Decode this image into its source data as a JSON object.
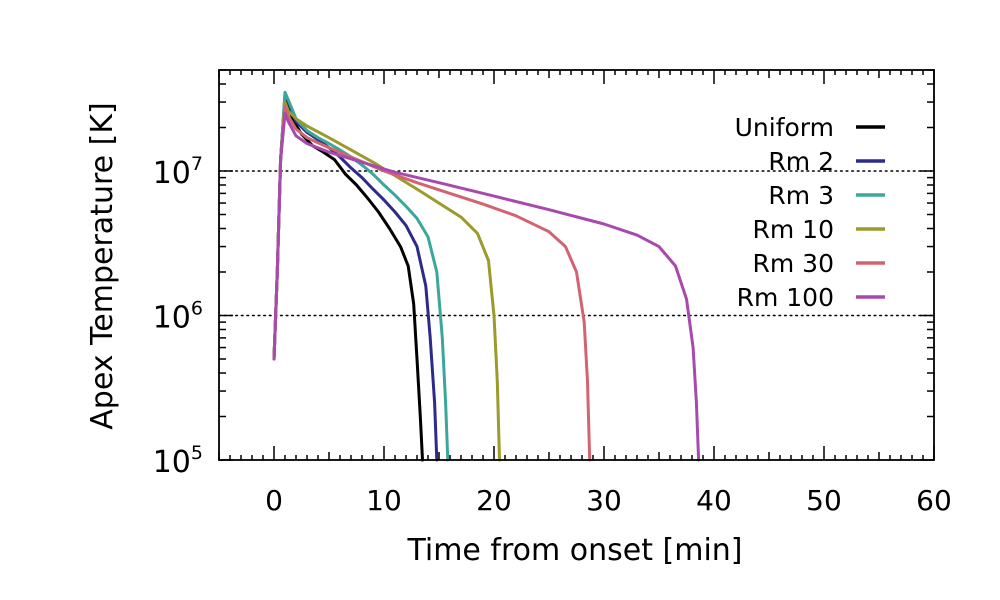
{
  "chart_data": {
    "type": "line",
    "title": "",
    "xlabel": "Time from onset [min]",
    "ylabel": "Apex Temperature [K]",
    "xlim": [
      -5,
      60
    ],
    "ylim": [
      100000,
      50000000
    ],
    "yscale": "log",
    "xticks": [
      0,
      10,
      20,
      30,
      40,
      50,
      60
    ],
    "yticks": [
      {
        "value": 100000,
        "base": "10",
        "exp": "5"
      },
      {
        "value": 1000000,
        "base": "10",
        "exp": "6"
      },
      {
        "value": 10000000,
        "base": "10",
        "exp": "7"
      }
    ],
    "reference_lines": [
      1000000,
      10000000
    ],
    "legend_position": "top-right",
    "series": [
      {
        "name": "Uniform",
        "color": "#000000",
        "points": [
          [
            0,
            500000
          ],
          [
            0.3,
            2000000
          ],
          [
            0.6,
            12000000
          ],
          [
            1.0,
            32000000
          ],
          [
            1.3,
            28000000
          ],
          [
            1.8,
            22000000
          ],
          [
            2.5,
            18000000
          ],
          [
            3.5,
            15000000
          ],
          [
            4.5,
            13500000
          ],
          [
            5.5,
            12000000
          ],
          [
            6.5,
            9500000
          ],
          [
            7.5,
            8000000
          ],
          [
            8.5,
            6500000
          ],
          [
            9.5,
            5200000
          ],
          [
            10.5,
            4000000
          ],
          [
            11.5,
            3000000
          ],
          [
            12.2,
            2200000
          ],
          [
            12.7,
            1200000
          ],
          [
            13.0,
            500000
          ],
          [
            13.3,
            200000
          ],
          [
            13.5,
            100000
          ]
        ]
      },
      {
        "name": "Rm 2",
        "color": "#2e2a8c",
        "points": [
          [
            0,
            500000
          ],
          [
            0.3,
            2000000
          ],
          [
            0.6,
            12000000
          ],
          [
            1.0,
            34000000
          ],
          [
            1.3,
            30000000
          ],
          [
            2.0,
            22000000
          ],
          [
            3.0,
            18500000
          ],
          [
            4.0,
            16500000
          ],
          [
            5.0,
            14500000
          ],
          [
            6.0,
            12500000
          ],
          [
            7.0,
            10500000
          ],
          [
            8.0,
            9000000
          ],
          [
            9.0,
            7500000
          ],
          [
            10.0,
            6300000
          ],
          [
            11.0,
            5200000
          ],
          [
            12.0,
            4200000
          ],
          [
            13.0,
            3000000
          ],
          [
            13.8,
            1600000
          ],
          [
            14.2,
            700000
          ],
          [
            14.6,
            250000
          ],
          [
            14.8,
            100000
          ]
        ]
      },
      {
        "name": "Rm 3",
        "color": "#3aa79a",
        "points": [
          [
            0,
            500000
          ],
          [
            0.3,
            2000000
          ],
          [
            0.6,
            12000000
          ],
          [
            1.0,
            35000000
          ],
          [
            1.3,
            31000000
          ],
          [
            2.0,
            23000000
          ],
          [
            3.0,
            19000000
          ],
          [
            4.0,
            17000000
          ],
          [
            5.0,
            15500000
          ],
          [
            6.0,
            14000000
          ],
          [
            7.0,
            12500000
          ],
          [
            8.0,
            11000000
          ],
          [
            9.0,
            9500000
          ],
          [
            10.0,
            8000000
          ],
          [
            11.0,
            6800000
          ],
          [
            12.0,
            5700000
          ],
          [
            13.0,
            4700000
          ],
          [
            14.0,
            3500000
          ],
          [
            14.8,
            2000000
          ],
          [
            15.3,
            700000
          ],
          [
            15.6,
            250000
          ],
          [
            15.8,
            100000
          ]
        ]
      },
      {
        "name": "Rm 10",
        "color": "#9b9a2b",
        "points": [
          [
            0,
            500000
          ],
          [
            0.3,
            2000000
          ],
          [
            0.6,
            12000000
          ],
          [
            1.0,
            30000000
          ],
          [
            1.3,
            26000000
          ],
          [
            2.0,
            23000000
          ],
          [
            3.0,
            20500000
          ],
          [
            5.0,
            17000000
          ],
          [
            7.0,
            14000000
          ],
          [
            9.0,
            11500000
          ],
          [
            11.0,
            9300000
          ],
          [
            13.0,
            7500000
          ],
          [
            15.0,
            6000000
          ],
          [
            17.0,
            4800000
          ],
          [
            18.5,
            3700000
          ],
          [
            19.5,
            2400000
          ],
          [
            20.0,
            1000000
          ],
          [
            20.3,
            350000
          ],
          [
            20.5,
            100000
          ]
        ]
      },
      {
        "name": "Rm 30",
        "color": "#d16470",
        "points": [
          [
            0,
            500000
          ],
          [
            0.3,
            2000000
          ],
          [
            0.6,
            12000000
          ],
          [
            1.0,
            28000000
          ],
          [
            1.3,
            24000000
          ],
          [
            2.0,
            19500000
          ],
          [
            3.0,
            17000000
          ],
          [
            5.0,
            14500000
          ],
          [
            7.0,
            12500000
          ],
          [
            10.0,
            10000000
          ],
          [
            13.0,
            8300000
          ],
          [
            16.0,
            7000000
          ],
          [
            19.0,
            5900000
          ],
          [
            22.0,
            4900000
          ],
          [
            25.0,
            3800000
          ],
          [
            26.5,
            3000000
          ],
          [
            27.5,
            2000000
          ],
          [
            28.2,
            900000
          ],
          [
            28.5,
            350000
          ],
          [
            28.7,
            100000
          ]
        ]
      },
      {
        "name": "Rm 100",
        "color": "#a84aad",
        "points": [
          [
            0,
            500000
          ],
          [
            0.3,
            2000000
          ],
          [
            0.6,
            12000000
          ],
          [
            1.0,
            25000000
          ],
          [
            1.3,
            22000000
          ],
          [
            2.0,
            17500000
          ],
          [
            3.0,
            15500000
          ],
          [
            5.0,
            13500000
          ],
          [
            8.0,
            11500000
          ],
          [
            11.0,
            9800000
          ],
          [
            15.0,
            8300000
          ],
          [
            20.0,
            6700000
          ],
          [
            25.0,
            5400000
          ],
          [
            30.0,
            4300000
          ],
          [
            33.0,
            3600000
          ],
          [
            35.0,
            3000000
          ],
          [
            36.5,
            2200000
          ],
          [
            37.5,
            1300000
          ],
          [
            38.1,
            600000
          ],
          [
            38.4,
            250000
          ],
          [
            38.6,
            100000
          ]
        ]
      }
    ]
  }
}
